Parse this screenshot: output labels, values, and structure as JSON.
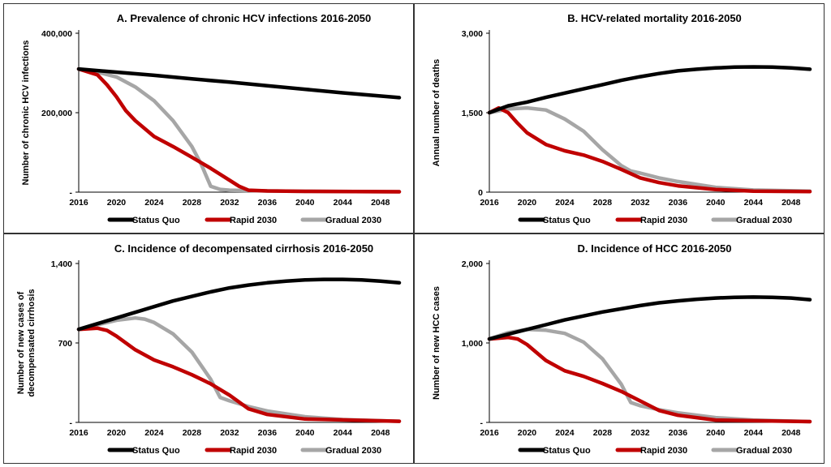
{
  "colors": {
    "status_quo": "#000000",
    "rapid_2030": "#c00000",
    "gradual_2030": "#a6a6a6"
  },
  "chart_data": [
    {
      "type": "line",
      "title": "A. Prevalence of chronic HCV infections 2016-2050",
      "xlabel": "",
      "ylabel_lines": [
        "Number of chronic HCV infections"
      ],
      "xlim": [
        2016,
        2050
      ],
      "ylim": [
        0,
        400000
      ],
      "x_ticks": [
        2016,
        2020,
        2024,
        2028,
        2032,
        2036,
        2040,
        2044,
        2048
      ],
      "y_ticks": [
        0,
        200000,
        400000
      ],
      "y_tick_labels": [
        "-",
        "200,000",
        "400,000"
      ],
      "series": [
        {
          "name": "Status Quo",
          "x": [
            2016,
            2020,
            2024,
            2028,
            2032,
            2036,
            2040,
            2044,
            2050
          ],
          "values": [
            310000,
            302000,
            294000,
            285000,
            277000,
            268000,
            259000,
            250000,
            238000
          ]
        },
        {
          "name": "Rapid 2030",
          "x": [
            2016,
            2018,
            2019,
            2020,
            2021,
            2022,
            2024,
            2026,
            2028,
            2030,
            2032,
            2033,
            2034,
            2036,
            2040,
            2050
          ],
          "values": [
            310000,
            295000,
            270000,
            240000,
            205000,
            180000,
            140000,
            115000,
            88000,
            60000,
            30000,
            15000,
            5000,
            3000,
            2000,
            1000
          ]
        },
        {
          "name": "Gradual 2030",
          "x": [
            2016,
            2018,
            2020,
            2022,
            2024,
            2026,
            2028,
            2029,
            2030,
            2031,
            2032,
            2036,
            2040,
            2050
          ],
          "values": [
            310000,
            302000,
            290000,
            265000,
            230000,
            180000,
            115000,
            70000,
            15000,
            7000,
            5000,
            3000,
            2000,
            1000
          ]
        }
      ]
    },
    {
      "type": "line",
      "title": "B. HCV-related mortality 2016-2050",
      "xlabel": "",
      "ylabel_lines": [
        "Annual number of deaths"
      ],
      "xlim": [
        2016,
        2050
      ],
      "ylim": [
        0,
        3000
      ],
      "x_ticks": [
        2016,
        2020,
        2024,
        2028,
        2032,
        2036,
        2040,
        2044,
        2048
      ],
      "y_ticks": [
        0,
        1500,
        3000
      ],
      "y_tick_labels": [
        "0",
        "1,500",
        "3,000"
      ],
      "series": [
        {
          "name": "Status Quo",
          "x": [
            2016,
            2018,
            2020,
            2022,
            2024,
            2026,
            2028,
            2030,
            2032,
            2034,
            2036,
            2038,
            2040,
            2042,
            2044,
            2046,
            2048,
            2050
          ],
          "values": [
            1500,
            1630,
            1700,
            1790,
            1870,
            1950,
            2030,
            2110,
            2180,
            2240,
            2290,
            2320,
            2345,
            2360,
            2365,
            2360,
            2345,
            2320
          ]
        },
        {
          "name": "Rapid 2030",
          "x": [
            2016,
            2017,
            2018,
            2019,
            2020,
            2022,
            2024,
            2026,
            2028,
            2030,
            2032,
            2034,
            2036,
            2040,
            2044,
            2050
          ],
          "values": [
            1500,
            1590,
            1500,
            1300,
            1120,
            900,
            780,
            700,
            580,
            430,
            270,
            180,
            120,
            50,
            20,
            10
          ]
        },
        {
          "name": "Gradual 2030",
          "x": [
            2016,
            2018,
            2020,
            2022,
            2024,
            2026,
            2028,
            2030,
            2031,
            2032,
            2034,
            2036,
            2040,
            2044,
            2050
          ],
          "values": [
            1500,
            1570,
            1590,
            1550,
            1380,
            1150,
            800,
            500,
            400,
            360,
            270,
            200,
            90,
            40,
            20
          ]
        }
      ]
    },
    {
      "type": "line",
      "title": "C. Incidence of decompensated cirrhosis 2016-2050",
      "xlabel": "",
      "ylabel_lines": [
        "Number of new cases of",
        "decompensated cirrhosis"
      ],
      "xlim": [
        2016,
        2050
      ],
      "ylim": [
        0,
        1400
      ],
      "x_ticks": [
        2016,
        2020,
        2024,
        2028,
        2032,
        2036,
        2040,
        2044,
        2048
      ],
      "y_ticks": [
        0,
        700,
        1400
      ],
      "y_tick_labels": [
        "-",
        "700",
        "1,400"
      ],
      "series": [
        {
          "name": "Status Quo",
          "x": [
            2016,
            2018,
            2020,
            2022,
            2024,
            2026,
            2028,
            2030,
            2032,
            2034,
            2036,
            2038,
            2040,
            2042,
            2044,
            2046,
            2048,
            2050
          ],
          "values": [
            820,
            870,
            920,
            970,
            1020,
            1070,
            1110,
            1150,
            1185,
            1210,
            1230,
            1245,
            1255,
            1260,
            1260,
            1255,
            1245,
            1230
          ]
        },
        {
          "name": "Rapid 2030",
          "x": [
            2016,
            2018,
            2019,
            2020,
            2022,
            2024,
            2026,
            2028,
            2030,
            2032,
            2034,
            2036,
            2040,
            2050
          ],
          "values": [
            820,
            830,
            810,
            760,
            640,
            550,
            490,
            420,
            340,
            240,
            120,
            70,
            30,
            10
          ]
        },
        {
          "name": "Gradual 2030",
          "x": [
            2016,
            2018,
            2020,
            2022,
            2023,
            2024,
            2026,
            2028,
            2030,
            2031,
            2032,
            2034,
            2036,
            2040,
            2044,
            2050
          ],
          "values": [
            820,
            860,
            900,
            920,
            910,
            880,
            780,
            620,
            380,
            220,
            190,
            140,
            100,
            50,
            25,
            10
          ]
        }
      ]
    },
    {
      "type": "line",
      "title": "D. Incidence of HCC 2016-2050",
      "xlabel": "",
      "ylabel_lines": [
        "Number of new HCC cases"
      ],
      "xlim": [
        2016,
        2050
      ],
      "ylim": [
        0,
        2000
      ],
      "x_ticks": [
        2016,
        2020,
        2024,
        2028,
        2032,
        2036,
        2040,
        2044,
        2048
      ],
      "y_ticks": [
        0,
        1000,
        2000
      ],
      "y_tick_labels": [
        "-",
        "1,000",
        "2,000"
      ],
      "series": [
        {
          "name": "Status Quo",
          "x": [
            2016,
            2018,
            2020,
            2022,
            2024,
            2026,
            2028,
            2030,
            2032,
            2034,
            2036,
            2038,
            2040,
            2042,
            2044,
            2046,
            2048,
            2050
          ],
          "values": [
            1050,
            1110,
            1170,
            1230,
            1290,
            1340,
            1390,
            1430,
            1470,
            1505,
            1530,
            1550,
            1565,
            1575,
            1578,
            1575,
            1565,
            1545
          ]
        },
        {
          "name": "Rapid 2030",
          "x": [
            2016,
            2018,
            2019,
            2020,
            2022,
            2024,
            2026,
            2028,
            2030,
            2032,
            2034,
            2036,
            2040,
            2050
          ],
          "values": [
            1050,
            1070,
            1050,
            980,
            780,
            650,
            580,
            490,
            390,
            270,
            150,
            90,
            30,
            10
          ]
        },
        {
          "name": "Gradual 2030",
          "x": [
            2016,
            2018,
            2020,
            2022,
            2024,
            2026,
            2028,
            2030,
            2031,
            2032,
            2034,
            2036,
            2040,
            2044,
            2050
          ],
          "values": [
            1050,
            1130,
            1170,
            1160,
            1120,
            1010,
            800,
            480,
            250,
            210,
            160,
            120,
            60,
            30,
            10
          ]
        }
      ]
    }
  ]
}
